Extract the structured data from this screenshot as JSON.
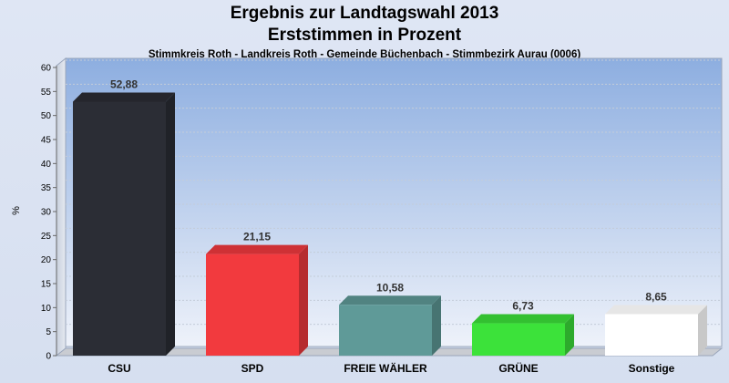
{
  "header": {
    "title_line1": "Ergebnis zur Landtagswahl 2013",
    "title_line2": "Erststimmen in Prozent",
    "subtitle": "Stimmkreis Roth - Landkreis Roth - Gemeinde Büchenbach - Stimmbezirk Aurau (0006)"
  },
  "chart_data": {
    "type": "bar",
    "categories": [
      "CSU",
      "SPD",
      "FREIE WÄHLER",
      "GRÜNE",
      "Sonstige"
    ],
    "values": [
      52.88,
      21.15,
      10.58,
      6.73,
      8.65
    ],
    "value_labels": [
      "52,88",
      "21,15",
      "10,58",
      "6,73",
      "8,65"
    ],
    "colors": [
      "#2b2d35",
      "#f23a3e",
      "#5f9a98",
      "#3ce23a",
      "#ffffff"
    ],
    "ylabel": "%",
    "ylim": [
      0,
      60
    ],
    "yticks": [
      0,
      5,
      10,
      15,
      20,
      25,
      30,
      35,
      40,
      45,
      50,
      55,
      60
    ],
    "grid": true,
    "legend": "none"
  }
}
